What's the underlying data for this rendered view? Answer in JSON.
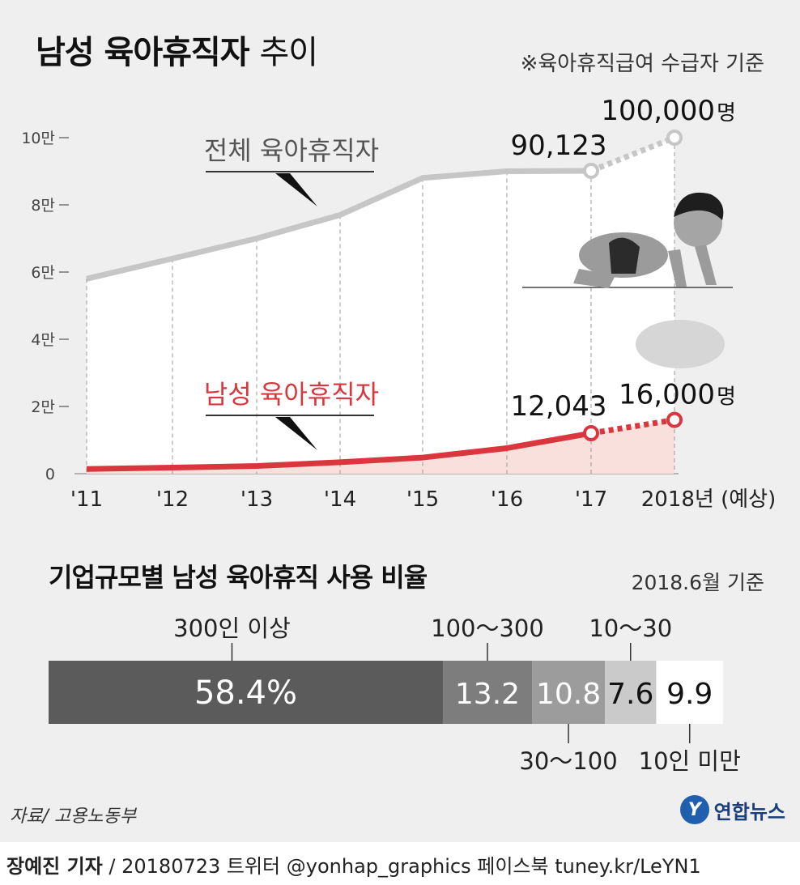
{
  "header": {
    "title_bold": "남성 육아휴직자",
    "title_light": "추이",
    "note": "※육아휴직급여 수급자 기준"
  },
  "chart_data": [
    {
      "type": "line",
      "x": [
        "'11",
        "'12",
        "'13",
        "'14",
        "'15",
        "'16",
        "'17",
        "2018년 (예상)"
      ],
      "yticks": [
        "0",
        "2만",
        "4만",
        "6만",
        "8만",
        "10만"
      ],
      "ylim": [
        0,
        100000
      ],
      "series": [
        {
          "name": "전체 육아휴직자",
          "color": "#c6c6c6",
          "values": [
            58000,
            64000,
            70000,
            77000,
            88000,
            90000,
            90123,
            100000
          ],
          "label_17": "90,123",
          "label_18": "100,000",
          "unit": "명"
        },
        {
          "name": "남성 육아휴직자",
          "color": "#d9373d",
          "values": [
            1400,
            1800,
            2300,
            3400,
            4800,
            7600,
            12043,
            16000
          ],
          "label_17": "12,043",
          "label_18": "16,000",
          "unit": "명"
        }
      ],
      "grid": "vertical dashed",
      "legend": "inline labels"
    },
    {
      "type": "bar",
      "title": "기업규모별 남성 육아휴직 사용 비율",
      "date": "2018.6월 기준",
      "segments": [
        {
          "name": "300인 이상",
          "value": 58.4,
          "label": "58.4%",
          "color": "#5b5b5b",
          "label_pos": "top"
        },
        {
          "name": "100～300",
          "value": 13.2,
          "label": "13.2",
          "color": "#7d7d7d",
          "label_pos": "top"
        },
        {
          "name": "30～100",
          "value": 10.8,
          "label": "10.8",
          "color": "#9c9c9c",
          "label_pos": "bottom"
        },
        {
          "name": "10～30",
          "value": 7.6,
          "label": "7.6",
          "color": "#cacaca",
          "label_pos": "top"
        },
        {
          "name": "10인 미만",
          "value": 9.9,
          "label": "9.9",
          "color": "#ffffff",
          "label_pos": "bottom"
        }
      ]
    }
  ],
  "source": "자료/ 고용노동부",
  "logo": {
    "mark": "Y",
    "text": "연합뉴스"
  },
  "credit": {
    "author": "장예진 기자",
    "rest": " / 20180723 트위터 @yonhap_graphics  페이스북 tuney.kr/LeYN1"
  }
}
